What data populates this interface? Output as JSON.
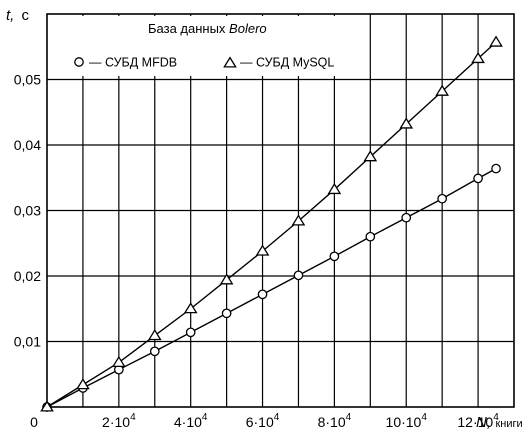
{
  "chart_data": {
    "type": "line",
    "title": "База данных Bolero",
    "title_parts": {
      "prefix": "База данных ",
      "italic": "Bolero"
    },
    "xlabel": {
      "var": "N,",
      "unit": "книги"
    },
    "ylabel": {
      "var": "t,",
      "unit": "с"
    },
    "xlim": [
      0,
      130000
    ],
    "ylim": [
      0,
      0.06
    ],
    "grid": true,
    "legend_placement": "top-left",
    "x_ticks": [
      {
        "value": 0,
        "base": "0",
        "exp": ""
      },
      {
        "value": 20000,
        "base": "2·10",
        "exp": "4"
      },
      {
        "value": 40000,
        "base": "4·10",
        "exp": "4"
      },
      {
        "value": 60000,
        "base": "6·10",
        "exp": "4"
      },
      {
        "value": 80000,
        "base": "8·10",
        "exp": "4"
      },
      {
        "value": 100000,
        "base": "10·10",
        "exp": "4"
      },
      {
        "value": 120000,
        "base": "12·10",
        "exp": "4"
      }
    ],
    "y_ticks": [
      {
        "value": 0.01,
        "label": "0,01"
      },
      {
        "value": 0.02,
        "label": "0,02"
      },
      {
        "value": 0.03,
        "label": "0,03"
      },
      {
        "value": 0.04,
        "label": "0,04"
      },
      {
        "value": 0.05,
        "label": "0,05"
      }
    ],
    "series": [
      {
        "name": "— СУБД  MFDB",
        "marker": "circle",
        "x": [
          0,
          10000,
          20000,
          30000,
          40000,
          50000,
          60000,
          70000,
          80000,
          90000,
          100000,
          110000,
          120000,
          125000
        ],
        "y": [
          0,
          0.0029,
          0.0057,
          0.0085,
          0.0114,
          0.0143,
          0.0172,
          0.0201,
          0.023,
          0.026,
          0.0289,
          0.0318,
          0.0349,
          0.0364
        ]
      },
      {
        "name": "— СУБД  MySQL",
        "marker": "triangle",
        "x": [
          0,
          10000,
          20000,
          30000,
          40000,
          50000,
          60000,
          70000,
          80000,
          90000,
          100000,
          110000,
          120000,
          125000
        ],
        "y": [
          0,
          0.0034,
          0.0068,
          0.0109,
          0.015,
          0.0194,
          0.0238,
          0.0284,
          0.0332,
          0.0382,
          0.0432,
          0.0482,
          0.0532,
          0.0557
        ]
      }
    ]
  }
}
